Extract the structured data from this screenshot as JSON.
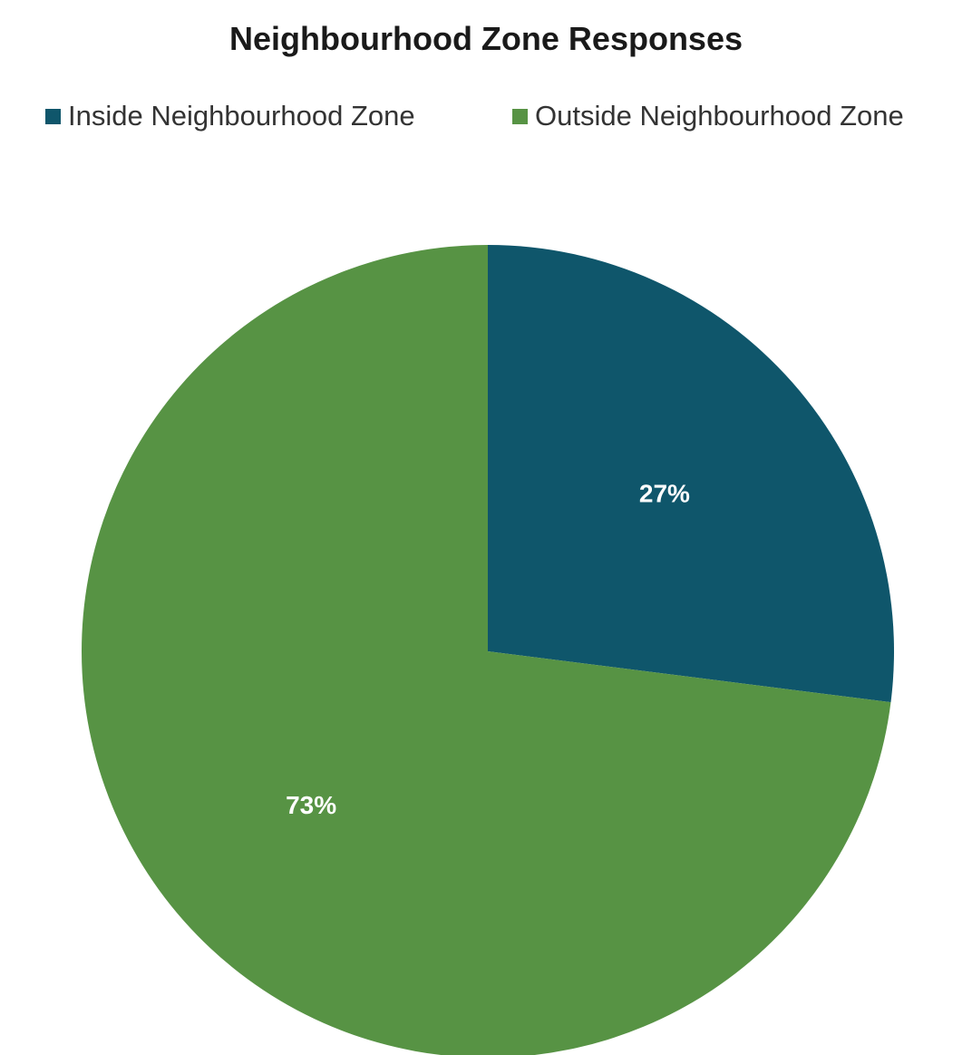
{
  "chart_data": {
    "type": "pie",
    "title": "Neighbourhood Zone Responses",
    "legend_position": "top",
    "categories": [
      "Inside Neighbourhood Zone",
      "Outside Neighbourhood Zone"
    ],
    "values": [
      27,
      73
    ],
    "labels": [
      "27%",
      "73%"
    ],
    "colors": [
      "#0f566b",
      "#579344"
    ]
  }
}
